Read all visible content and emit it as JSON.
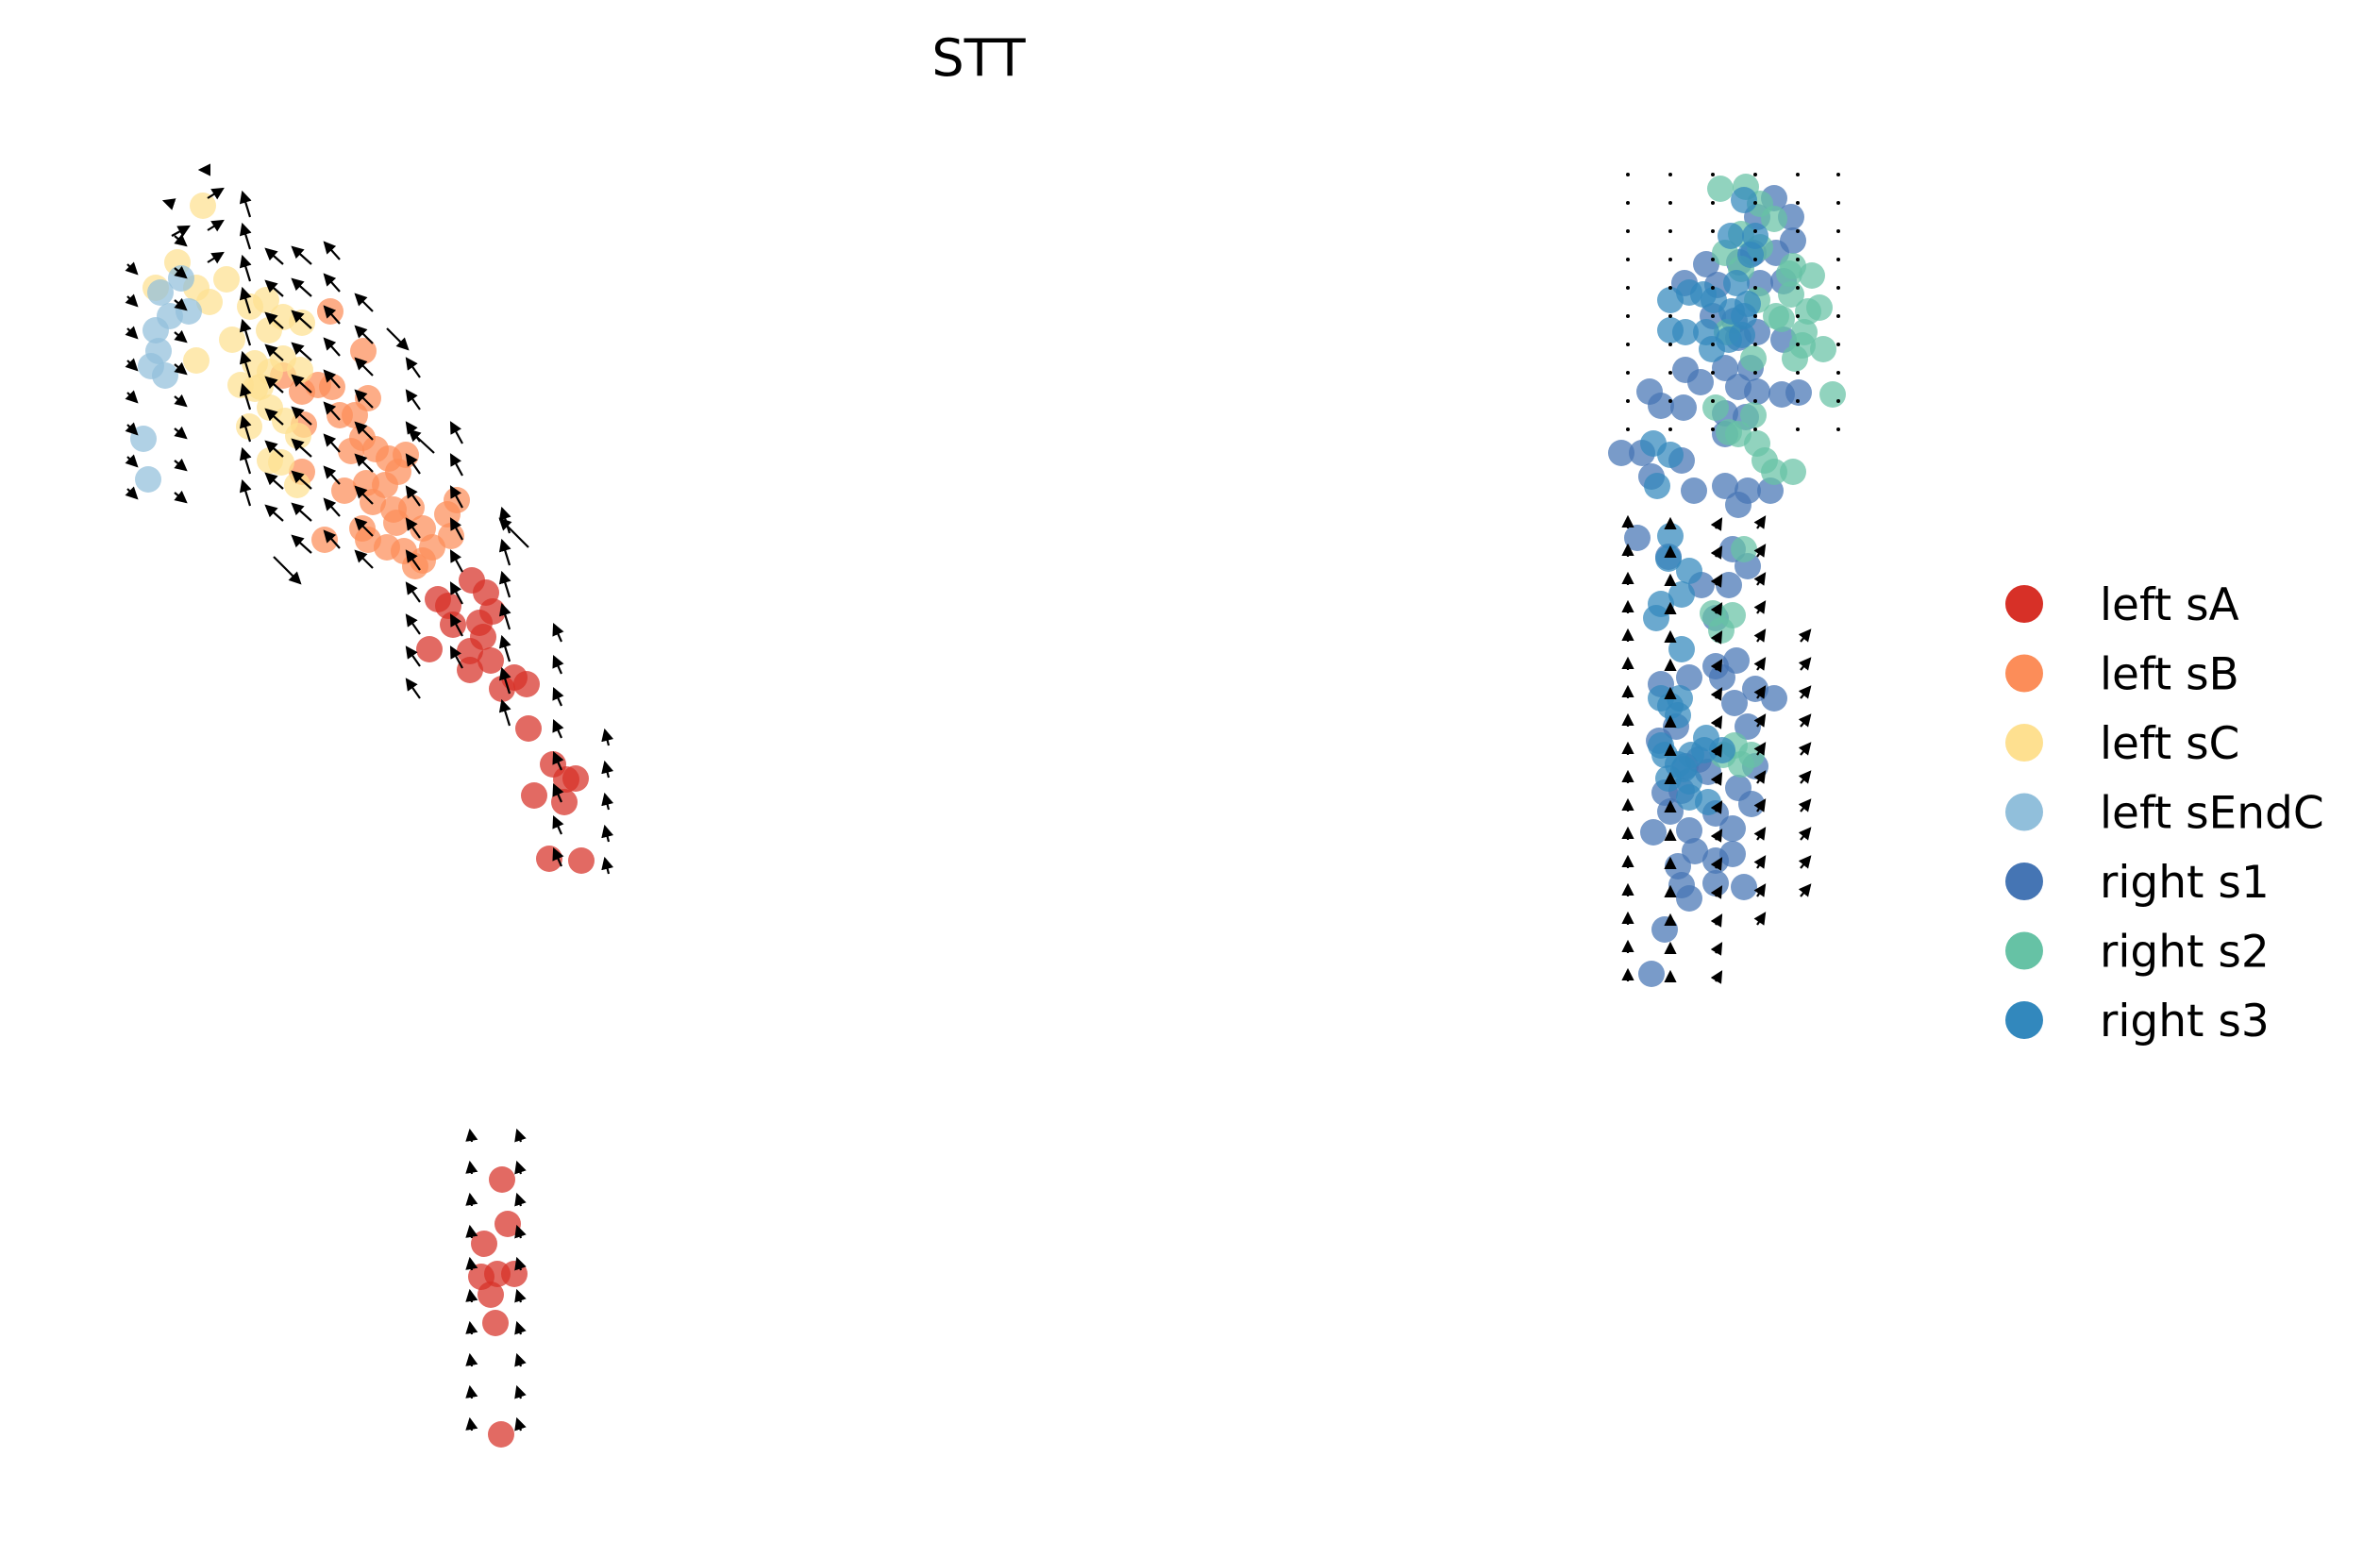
{
  "chart_data": {
    "type": "scatter",
    "title": "STT",
    "xlabel": "",
    "ylabel": "",
    "axes": "off",
    "grid": false,
    "legend_position": "right",
    "overlay": "velocity arrows on grid",
    "series": [
      {
        "name": "left sA",
        "color": "#d73027",
        "points": [
          [
            500,
            615
          ],
          [
            515,
            628
          ],
          [
            522,
            648
          ],
          [
            508,
            660
          ],
          [
            498,
            690
          ],
          [
            512,
            675
          ],
          [
            475,
            642
          ],
          [
            464,
            635
          ],
          [
            480,
            662
          ],
          [
            455,
            688
          ],
          [
            520,
            700
          ],
          [
            545,
            718
          ],
          [
            558,
            725
          ],
          [
            532,
            730
          ],
          [
            498,
            710
          ],
          [
            560,
            772
          ],
          [
            600,
            826
          ],
          [
            586,
            810
          ],
          [
            610,
            825
          ],
          [
            566,
            843
          ],
          [
            598,
            850
          ],
          [
            616,
            912
          ],
          [
            582,
            910
          ],
          [
            532,
            1250
          ],
          [
            538,
            1297
          ],
          [
            513,
            1318
          ],
          [
            510,
            1353
          ],
          [
            527,
            1350
          ],
          [
            545,
            1350
          ],
          [
            520,
            1372
          ],
          [
            525,
            1402
          ],
          [
            531,
            1520
          ]
        ]
      },
      {
        "name": "left sB",
        "color": "#fc8d59",
        "points": [
          [
            350,
            330
          ],
          [
            385,
            372
          ],
          [
            300,
            398
          ],
          [
            320,
            415
          ],
          [
            337,
            408
          ],
          [
            352,
            410
          ],
          [
            360,
            440
          ],
          [
            322,
            450
          ],
          [
            376,
            440
          ],
          [
            390,
            422
          ],
          [
            384,
            464
          ],
          [
            372,
            478
          ],
          [
            398,
            476
          ],
          [
            412,
            486
          ],
          [
            430,
            482
          ],
          [
            422,
            500
          ],
          [
            388,
            512
          ],
          [
            408,
            514
          ],
          [
            320,
            500
          ],
          [
            365,
            520
          ],
          [
            395,
            532
          ],
          [
            417,
            540
          ],
          [
            436,
            538
          ],
          [
            384,
            560
          ],
          [
            420,
            554
          ],
          [
            448,
            560
          ],
          [
            484,
            530
          ],
          [
            474,
            545
          ],
          [
            390,
            572
          ],
          [
            410,
            580
          ],
          [
            428,
            584
          ],
          [
            448,
            594
          ],
          [
            458,
            580
          ],
          [
            478,
            568
          ],
          [
            344,
            572
          ],
          [
            440,
            600
          ]
        ]
      },
      {
        "name": "left sC",
        "color": "#fee090",
        "points": [
          [
            215,
            218
          ],
          [
            188,
            278
          ],
          [
            208,
            305
          ],
          [
            240,
            296
          ],
          [
            222,
            320
          ],
          [
            265,
            325
          ],
          [
            282,
            318
          ],
          [
            300,
            336
          ],
          [
            320,
            342
          ],
          [
            246,
            360
          ],
          [
            285,
            350
          ],
          [
            270,
            385
          ],
          [
            276,
            410
          ],
          [
            255,
            408
          ],
          [
            300,
            380
          ],
          [
            318,
            392
          ],
          [
            286,
            432
          ],
          [
            302,
            446
          ],
          [
            264,
            452
          ],
          [
            316,
            462
          ],
          [
            286,
            488
          ],
          [
            298,
            490
          ],
          [
            315,
            514
          ],
          [
            270,
            412
          ],
          [
            286,
            394
          ],
          [
            165,
            305
          ],
          [
            208,
            382
          ]
        ]
      },
      {
        "name": "left sEndC",
        "color": "#91bfdb",
        "points": [
          [
            170,
            310
          ],
          [
            192,
            295
          ],
          [
            165,
            350
          ],
          [
            160,
            388
          ],
          [
            175,
            398
          ],
          [
            180,
            335
          ],
          [
            200,
            330
          ],
          [
            152,
            465
          ],
          [
            157,
            508
          ],
          [
            168,
            372
          ]
        ]
      },
      {
        "name": "right s1",
        "color": "#4575b4",
        "points": [
          [
            1880,
            210
          ],
          [
            1862,
            230
          ],
          [
            1898,
            230
          ],
          [
            1808,
            280
          ],
          [
            1785,
            300
          ],
          [
            1820,
            302
          ],
          [
            1843,
            278
          ],
          [
            1865,
            300
          ],
          [
            1890,
            298
          ],
          [
            1815,
            335
          ],
          [
            1838,
            340
          ],
          [
            1786,
            392
          ],
          [
            1802,
            405
          ],
          [
            1828,
            390
          ],
          [
            1855,
            390
          ],
          [
            1842,
            410
          ],
          [
            1862,
            415
          ],
          [
            1748,
            415
          ],
          [
            1760,
            430
          ],
          [
            1784,
            432
          ],
          [
            1828,
            438
          ],
          [
            1828,
            460
          ],
          [
            1850,
            442
          ],
          [
            1888,
            418
          ],
          [
            1906,
            416
          ],
          [
            1828,
            515
          ],
          [
            1852,
            520
          ],
          [
            1876,
            520
          ],
          [
            1842,
            535
          ],
          [
            1795,
            520
          ],
          [
            1740,
            480
          ],
          [
            1718,
            480
          ],
          [
            1750,
            505
          ],
          [
            1782,
            488
          ],
          [
            1735,
            570
          ],
          [
            1768,
            590
          ],
          [
            1836,
            582
          ],
          [
            1852,
            600
          ],
          [
            1832,
            620
          ],
          [
            1803,
            620
          ],
          [
            1818,
            655
          ],
          [
            1840,
            700
          ],
          [
            1818,
            706
          ],
          [
            1790,
            718
          ],
          [
            1760,
            725
          ],
          [
            1825,
            718
          ],
          [
            1860,
            730
          ],
          [
            1880,
            740
          ],
          [
            1838,
            745
          ],
          [
            1852,
            770
          ],
          [
            1776,
            770
          ],
          [
            1758,
            785
          ],
          [
            1800,
            805
          ],
          [
            1786,
            812
          ],
          [
            1810,
            818
          ],
          [
            1782,
            838
          ],
          [
            1842,
            835
          ],
          [
            1860,
            812
          ],
          [
            1764,
            840
          ],
          [
            1770,
            860
          ],
          [
            1818,
            862
          ],
          [
            1836,
            878
          ],
          [
            1856,
            852
          ],
          [
            1790,
            880
          ],
          [
            1752,
            882
          ],
          [
            1796,
            902
          ],
          [
            1836,
            905
          ],
          [
            1818,
            912
          ],
          [
            1778,
            918
          ],
          [
            1818,
            936
          ],
          [
            1848,
            940
          ],
          [
            1782,
            938
          ],
          [
            1764,
            985
          ],
          [
            1790,
            952
          ],
          [
            1750,
            1032
          ],
          [
            1890,
            360
          ],
          [
            1862,
            352
          ],
          [
            1842,
            358
          ],
          [
            1882,
            268
          ],
          [
            1858,
            268
          ],
          [
            1900,
            255
          ]
        ]
      },
      {
        "name": "right s2",
        "color": "#66c2a5",
        "points": [
          [
            1823,
            200
          ],
          [
            1850,
            198
          ],
          [
            1865,
            216
          ],
          [
            1880,
            232
          ],
          [
            1845,
            248
          ],
          [
            1865,
            262
          ],
          [
            1828,
            268
          ],
          [
            1845,
            285
          ],
          [
            1900,
            282
          ],
          [
            1920,
            292
          ],
          [
            1898,
            312
          ],
          [
            1928,
            326
          ],
          [
            1888,
            338
          ],
          [
            1910,
            366
          ],
          [
            1932,
            370
          ],
          [
            1858,
            380
          ],
          [
            1830,
            352
          ],
          [
            1912,
            352
          ],
          [
            1896,
            290
          ],
          [
            1882,
            335
          ],
          [
            1862,
            318
          ],
          [
            1858,
            440
          ],
          [
            1862,
            470
          ],
          [
            1870,
            488
          ],
          [
            1880,
            500
          ],
          [
            1832,
            458
          ],
          [
            1818,
            432
          ],
          [
            1842,
            460
          ],
          [
            1900,
            500
          ],
          [
            1848,
            582
          ],
          [
            1815,
            650
          ],
          [
            1836,
            652
          ],
          [
            1824,
            668
          ],
          [
            1838,
            790
          ],
          [
            1826,
            800
          ],
          [
            1845,
            810
          ],
          [
            1856,
            800
          ],
          [
            1942,
            418
          ],
          [
            1902,
            380
          ],
          [
            1916,
            330
          ]
        ]
      },
      {
        "name": "right s3",
        "color": "#3288bd",
        "points": [
          [
            1848,
            212
          ],
          [
            1834,
            250
          ],
          [
            1860,
            250
          ],
          [
            1855,
            270
          ],
          [
            1840,
            300
          ],
          [
            1852,
            322
          ],
          [
            1835,
            330
          ],
          [
            1816,
            318
          ],
          [
            1832,
            360
          ],
          [
            1814,
            370
          ],
          [
            1808,
            352
          ],
          [
            1790,
            310
          ],
          [
            1805,
            312
          ],
          [
            1770,
            318
          ],
          [
            1770,
            350
          ],
          [
            1786,
            352
          ],
          [
            1846,
            355
          ],
          [
            1848,
            335
          ],
          [
            1752,
            470
          ],
          [
            1770,
            482
          ],
          [
            1756,
            515
          ],
          [
            1770,
            568
          ],
          [
            1768,
            592
          ],
          [
            1790,
            605
          ],
          [
            1782,
            630
          ],
          [
            1760,
            640
          ],
          [
            1755,
            655
          ],
          [
            1782,
            688
          ],
          [
            1760,
            740
          ],
          [
            1780,
            740
          ],
          [
            1770,
            748
          ],
          [
            1778,
            758
          ],
          [
            1760,
            790
          ],
          [
            1764,
            800
          ],
          [
            1778,
            810
          ],
          [
            1784,
            815
          ],
          [
            1792,
            800
          ],
          [
            1806,
            795
          ],
          [
            1808,
            782
          ],
          [
            1790,
            828
          ],
          [
            1790,
            845
          ],
          [
            1810,
            850
          ],
          [
            1768,
            825
          ],
          [
            1825,
            795
          ]
        ]
      }
    ]
  },
  "legend": [
    {
      "label": "left sA",
      "color": "#d73027"
    },
    {
      "label": "left sB",
      "color": "#fc8d59"
    },
    {
      "label": "left sC",
      "color": "#fee090"
    },
    {
      "label": "left sEndC",
      "color": "#91bfdb"
    },
    {
      "label": "right s1",
      "color": "#4575b4"
    },
    {
      "label": "right s2",
      "color": "#66c2a5"
    },
    {
      "label": "right s3",
      "color": "#3288bd"
    }
  ]
}
